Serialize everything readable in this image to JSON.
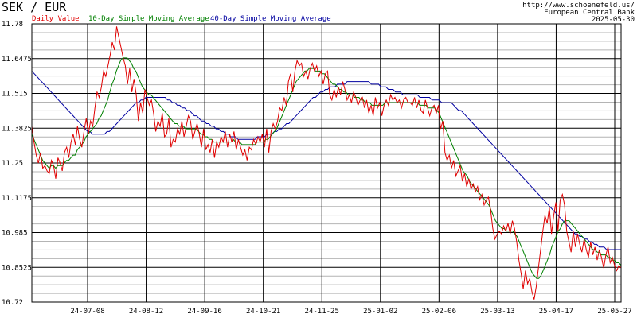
{
  "chart_data": {
    "type": "line",
    "title": "SEK / EUR",
    "source_lines": [
      "http://www.schoenefeld.us/",
      "European Central Bank",
      "2025-05-30"
    ],
    "ylim": [
      10.72,
      11.78
    ],
    "y_ticks": [
      "11.78",
      "11.6475",
      "11.515",
      "11.3825",
      "11.25",
      "11.1175",
      "10.985",
      "10.8525",
      "10.72"
    ],
    "x_tick_labels": [
      "24-07-08",
      "24-08-12",
      "24-09-16",
      "24-10-21",
      "24-11-25",
      "25-01-02",
      "25-02-06",
      "25-03-13",
      "25-04-17",
      "25-05-27"
    ],
    "grid": true,
    "legend_placement": "top",
    "colors": {
      "daily": "#e00000",
      "sma10": "#008000",
      "sma40": "#0000a0",
      "grid": "#000000",
      "minor_grid": "#b4b4b4"
    },
    "series": [
      {
        "name": "Daily Value",
        "color": "#e00000",
        "values": [
          11.39,
          11.33,
          11.28,
          11.25,
          11.29,
          11.23,
          11.24,
          11.22,
          11.21,
          11.26,
          11.24,
          11.19,
          11.27,
          11.25,
          11.22,
          11.29,
          11.31,
          11.27,
          11.33,
          11.36,
          11.32,
          11.39,
          11.34,
          11.31,
          11.37,
          11.42,
          11.36,
          11.41,
          11.39,
          11.46,
          11.52,
          11.5,
          11.54,
          11.6,
          11.58,
          11.62,
          11.66,
          11.71,
          11.68,
          11.77,
          11.73,
          11.69,
          11.65,
          11.62,
          11.55,
          11.61,
          11.52,
          11.57,
          11.51,
          11.41,
          11.48,
          11.44,
          11.53,
          11.5,
          11.47,
          11.49,
          11.44,
          11.37,
          11.41,
          11.39,
          11.44,
          11.35,
          11.36,
          11.42,
          11.31,
          11.34,
          11.33,
          11.38,
          11.36,
          11.41,
          11.35,
          11.39,
          11.43,
          11.41,
          11.34,
          11.37,
          11.4,
          11.36,
          11.31,
          11.38,
          11.3,
          11.32,
          11.29,
          11.34,
          11.27,
          11.33,
          11.31,
          11.35,
          11.33,
          11.37,
          11.31,
          11.36,
          11.33,
          11.37,
          11.3,
          11.34,
          11.31,
          11.28,
          11.3,
          11.26,
          11.31,
          11.3,
          11.34,
          11.32,
          11.35,
          11.33,
          11.36,
          11.31,
          11.38,
          11.29,
          11.37,
          11.4,
          11.38,
          11.41,
          11.46,
          11.45,
          11.5,
          11.47,
          11.56,
          11.59,
          11.52,
          11.6,
          11.64,
          11.62,
          11.63,
          11.58,
          11.6,
          11.57,
          11.61,
          11.63,
          11.6,
          11.62,
          11.58,
          11.6,
          11.55,
          11.59,
          11.6,
          11.51,
          11.49,
          11.53,
          11.5,
          11.54,
          11.51,
          11.56,
          11.53,
          11.49,
          11.51,
          11.48,
          11.52,
          11.5,
          11.47,
          11.49,
          11.5,
          11.46,
          11.49,
          11.44,
          11.47,
          11.43,
          11.5,
          11.46,
          11.48,
          11.43,
          11.47,
          11.49,
          11.47,
          11.51,
          11.49,
          11.5,
          11.48,
          11.49,
          11.46,
          11.49,
          11.5,
          11.48,
          11.48,
          11.47,
          11.5,
          11.46,
          11.49,
          11.45,
          11.44,
          11.49,
          11.46,
          11.43,
          11.46,
          11.47,
          11.44,
          11.47,
          11.38,
          11.41,
          11.29,
          11.26,
          11.28,
          11.23,
          11.26,
          11.2,
          11.22,
          11.24,
          11.18,
          11.21,
          11.16,
          11.19,
          11.15,
          11.17,
          11.14,
          11.16,
          11.11,
          11.13,
          11.09,
          11.11,
          11.12,
          11.07,
          11.0,
          10.96,
          10.98,
          10.99,
          10.98,
          11.01,
          10.99,
          11.02,
          10.98,
          11.03,
          11.0,
          10.95,
          10.88,
          10.83,
          10.77,
          10.84,
          10.79,
          10.81,
          10.76,
          10.73,
          10.78,
          10.85,
          10.92,
          10.99,
          11.05,
          11.02,
          11.08,
          10.98,
          11.05,
          11.1,
          10.99,
          11.11,
          11.13,
          11.09,
          10.99,
          10.95,
          10.91,
          10.99,
          10.93,
          10.98,
          10.94,
          10.91,
          10.96,
          10.92,
          10.89,
          10.95,
          10.9,
          10.93,
          10.88,
          10.92,
          10.89,
          10.85,
          10.9,
          10.93,
          10.87,
          10.89,
          10.86,
          10.84,
          10.86,
          10.85
        ]
      },
      {
        "name": "10-Day Simple Moving Average",
        "color": "#008000",
        "values": [
          11.36,
          11.34,
          11.32,
          11.3,
          11.28,
          11.26,
          11.25,
          11.24,
          11.23,
          11.24,
          11.24,
          11.23,
          11.24,
          11.24,
          11.24,
          11.25,
          11.26,
          11.26,
          11.27,
          11.28,
          11.28,
          11.3,
          11.31,
          11.32,
          11.33,
          11.35,
          11.36,
          11.37,
          11.38,
          11.39,
          11.4,
          11.42,
          11.43,
          11.45,
          11.47,
          11.49,
          11.52,
          11.55,
          11.57,
          11.6,
          11.62,
          11.64,
          11.65,
          11.65,
          11.65,
          11.64,
          11.63,
          11.61,
          11.6,
          11.58,
          11.56,
          11.54,
          11.53,
          11.52,
          11.51,
          11.51,
          11.5,
          11.49,
          11.48,
          11.47,
          11.46,
          11.45,
          11.44,
          11.43,
          11.42,
          11.41,
          11.4,
          11.4,
          11.39,
          11.39,
          11.39,
          11.38,
          11.38,
          11.38,
          11.38,
          11.38,
          11.38,
          11.37,
          11.36,
          11.36,
          11.35,
          11.35,
          11.34,
          11.34,
          11.33,
          11.33,
          11.33,
          11.33,
          11.33,
          11.33,
          11.33,
          11.33,
          11.33,
          11.34,
          11.33,
          11.33,
          11.33,
          11.32,
          11.32,
          11.32,
          11.32,
          11.32,
          11.32,
          11.32,
          11.33,
          11.33,
          11.33,
          11.33,
          11.34,
          11.34,
          11.35,
          11.36,
          11.37,
          11.38,
          11.4,
          11.42,
          11.44,
          11.46,
          11.48,
          11.5,
          11.52,
          11.54,
          11.56,
          11.57,
          11.58,
          11.59,
          11.6,
          11.6,
          11.61,
          11.61,
          11.61,
          11.6,
          11.6,
          11.6,
          11.59,
          11.59,
          11.58,
          11.57,
          11.56,
          11.55,
          11.55,
          11.54,
          11.53,
          11.53,
          11.52,
          11.52,
          11.51,
          11.51,
          11.51,
          11.5,
          11.5,
          11.5,
          11.49,
          11.49,
          11.48,
          11.48,
          11.48,
          11.47,
          11.47,
          11.47,
          11.47,
          11.47,
          11.47,
          11.48,
          11.48,
          11.48,
          11.48,
          11.48,
          11.48,
          11.48,
          11.48,
          11.48,
          11.48,
          11.48,
          11.48,
          11.48,
          11.48,
          11.48,
          11.48,
          11.47,
          11.47,
          11.47,
          11.47,
          11.46,
          11.46,
          11.46,
          11.46,
          11.45,
          11.44,
          11.42,
          11.4,
          11.38,
          11.36,
          11.34,
          11.32,
          11.3,
          11.28,
          11.26,
          11.24,
          11.22,
          11.21,
          11.2,
          11.18,
          11.17,
          11.16,
          11.15,
          11.14,
          11.13,
          11.12,
          11.11,
          11.1,
          11.09,
          11.07,
          11.05,
          11.03,
          11.02,
          11.01,
          11.0,
          11.0,
          10.99,
          10.99,
          10.99,
          10.99,
          10.98,
          10.97,
          10.95,
          10.93,
          10.91,
          10.89,
          10.87,
          10.85,
          10.83,
          10.82,
          10.81,
          10.81,
          10.82,
          10.84,
          10.86,
          10.88,
          10.9,
          10.93,
          10.95,
          10.97,
          10.99,
          11.0,
          11.02,
          11.03,
          11.03,
          11.03,
          11.02,
          11.01,
          11.0,
          10.99,
          10.98,
          10.97,
          10.96,
          10.95,
          10.94,
          10.93,
          10.92,
          10.92,
          10.91,
          10.91,
          10.9,
          10.9,
          10.9,
          10.89,
          10.89,
          10.88,
          10.88,
          10.87,
          10.87,
          10.86
        ]
      },
      {
        "name": "40-Day Simple Moving Average",
        "color": "#0000a0",
        "values": [
          11.6,
          11.59,
          11.58,
          11.57,
          11.56,
          11.55,
          11.54,
          11.53,
          11.52,
          11.51,
          11.5,
          11.49,
          11.48,
          11.47,
          11.46,
          11.45,
          11.44,
          11.43,
          11.42,
          11.41,
          11.4,
          11.39,
          11.38,
          11.37,
          11.37,
          11.36,
          11.36,
          11.36,
          11.36,
          11.36,
          11.36,
          11.37,
          11.37,
          11.38,
          11.39,
          11.4,
          11.41,
          11.42,
          11.43,
          11.44,
          11.45,
          11.46,
          11.47,
          11.48,
          11.48,
          11.49,
          11.49,
          11.5,
          11.5,
          11.5,
          11.5,
          11.5,
          11.5,
          11.5,
          11.5,
          11.5,
          11.49,
          11.49,
          11.48,
          11.48,
          11.47,
          11.47,
          11.46,
          11.46,
          11.45,
          11.45,
          11.44,
          11.43,
          11.43,
          11.42,
          11.41,
          11.41,
          11.4,
          11.4,
          11.39,
          11.39,
          11.38,
          11.38,
          11.37,
          11.37,
          11.36,
          11.36,
          11.35,
          11.35,
          11.35,
          11.34,
          11.34,
          11.34,
          11.34,
          11.34,
          11.34,
          11.34,
          11.34,
          11.35,
          11.35,
          11.35,
          11.35,
          11.36,
          11.36,
          11.36,
          11.37,
          11.37,
          11.38,
          11.38,
          11.39,
          11.4,
          11.4,
          11.41,
          11.42,
          11.43,
          11.44,
          11.45,
          11.46,
          11.47,
          11.48,
          11.49,
          11.5,
          11.5,
          11.51,
          11.52,
          11.52,
          11.53,
          11.53,
          11.54,
          11.54,
          11.54,
          11.55,
          11.55,
          11.55,
          11.55,
          11.56,
          11.56,
          11.56,
          11.56,
          11.56,
          11.56,
          11.56,
          11.56,
          11.56,
          11.56,
          11.55,
          11.55,
          11.55,
          11.55,
          11.54,
          11.54,
          11.54,
          11.53,
          11.53,
          11.53,
          11.52,
          11.52,
          11.52,
          11.51,
          11.51,
          11.51,
          11.51,
          11.51,
          11.51,
          11.51,
          11.5,
          11.5,
          11.5,
          11.5,
          11.5,
          11.49,
          11.49,
          11.49,
          11.49,
          11.48,
          11.48,
          11.48,
          11.48,
          11.48,
          11.47,
          11.46,
          11.45,
          11.45,
          11.44,
          11.43,
          11.42,
          11.41,
          11.4,
          11.39,
          11.38,
          11.37,
          11.36,
          11.35,
          11.34,
          11.33,
          11.32,
          11.31,
          11.3,
          11.29,
          11.28,
          11.27,
          11.26,
          11.25,
          11.24,
          11.23,
          11.22,
          11.21,
          11.2,
          11.19,
          11.18,
          11.17,
          11.16,
          11.15,
          11.14,
          11.13,
          11.12,
          11.11,
          11.1,
          11.09,
          11.08,
          11.07,
          11.06,
          11.05,
          11.04,
          11.03,
          11.02,
          11.01,
          11.0,
          10.99,
          10.98,
          10.98,
          10.97,
          10.97,
          10.96,
          10.96,
          10.95,
          10.95,
          10.94,
          10.94,
          10.93,
          10.93,
          10.93,
          10.92,
          10.92,
          10.92,
          10.92,
          10.92,
          10.92,
          10.92
        ]
      }
    ]
  }
}
